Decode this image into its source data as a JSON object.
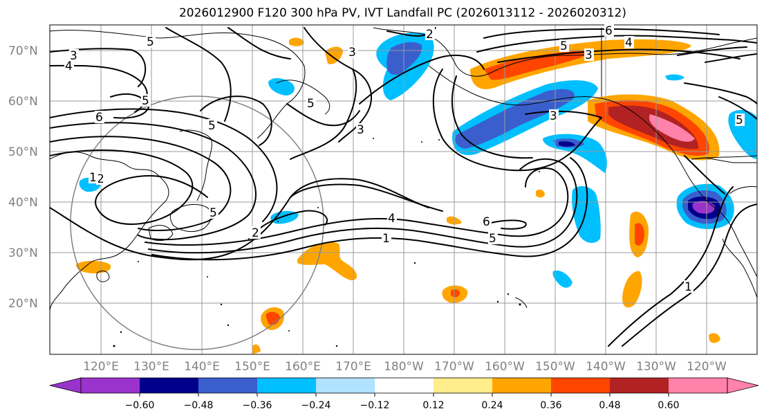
{
  "title": "2026012900 F120 300 hPa PV, IVT Landfall PC (2026013112 - 2026020312)",
  "latitude_labels": [
    "70°N",
    "60°N",
    "50°N",
    "40°N",
    "30°N",
    "20°N"
  ],
  "longitude_labels": [
    "120°E",
    "130°E",
    "140°E",
    "150°E",
    "160°E",
    "170°E",
    "180°W",
    "170°W",
    "160°W",
    "150°W",
    "140°W",
    "130°W",
    "120°W"
  ],
  "colorbar": {
    "tick_labels": [
      "−0.60",
      "−0.48",
      "−0.36",
      "−0.24",
      "−0.12",
      "0.12",
      "0.24",
      "0.36",
      "0.48",
      "0.60"
    ],
    "colors": [
      "#9a33cc",
      "#00008b",
      "#3a5fcd",
      "#00bfff",
      "#b0e2ff",
      "#ffffff",
      "#ffec8b",
      "#ffa500",
      "#ff4500",
      "#b22222",
      "#ff82ab"
    ]
  },
  "contour_labels": [
    "3",
    "4",
    "5",
    "6",
    "5",
    "2",
    "3",
    "2",
    "4",
    "3",
    "5",
    "5",
    "6",
    "1",
    "5",
    "5",
    "2",
    "4",
    "1",
    "6",
    "5",
    "3",
    "1",
    "3",
    "5"
  ]
}
